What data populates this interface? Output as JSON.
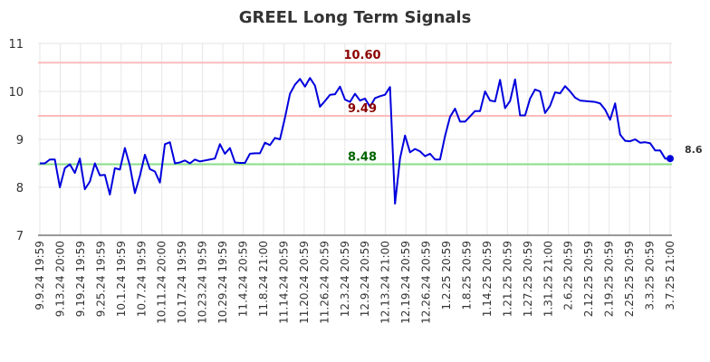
{
  "chart_data": {
    "type": "line",
    "title": "GREEL Long Term Signals",
    "xlabel": "",
    "ylabel": "",
    "ylim": [
      7,
      11
    ],
    "yticks": [
      "7",
      "8",
      "9",
      "10",
      "11"
    ],
    "x_tick_labels": [
      "9.9.24 19:59",
      "9.13.24 20:00",
      "9.19.24 19:59",
      "9.25.24 19:59",
      "10.1.24 19:59",
      "10.7.24 19:59",
      "10.11.24 20:00",
      "10.17.24 19:59",
      "10.23.24 19:59",
      "10.29.24 19:59",
      "11.4.24 20:59",
      "11.8.24 21:00",
      "11.14.24 20:59",
      "11.20.24 20:59",
      "11.26.24 20:59",
      "12.3.24 20:59",
      "12.9.24 20:59",
      "12.13.24 21:00",
      "12.19.24 20:59",
      "12.26.24 20:59",
      "1.2.25 20:59",
      "1.8.25 20:59",
      "1.14.25 20:59",
      "1.21.25 20:59",
      "1.27.25 20:59",
      "1.31.25 21:00",
      "2.6.25 20:59",
      "2.12.25 20:59",
      "2.19.25 20:59",
      "2.25.25 20:59",
      "3.3.25 20:59",
      "3.7.25 21:00"
    ],
    "grid": true,
    "series": [
      {
        "color": "#0000dd",
        "values": [
          8.5,
          8.5,
          8.58,
          8.58,
          8.0,
          8.4,
          8.48,
          8.3,
          8.6,
          7.96,
          8.12,
          8.5,
          8.25,
          8.26,
          7.85,
          8.4,
          8.37,
          8.82,
          8.45,
          7.88,
          8.24,
          8.68,
          8.38,
          8.33,
          8.1,
          8.9,
          8.94,
          8.5,
          8.52,
          8.56,
          8.5,
          8.58,
          8.54,
          8.56,
          8.58,
          8.6,
          8.9,
          8.7,
          8.82,
          8.52,
          8.51,
          8.51,
          8.7,
          8.71,
          8.71,
          8.93,
          8.88,
          9.03,
          9.0,
          9.45,
          9.95,
          10.14,
          10.26,
          10.1,
          10.28,
          10.12,
          9.68,
          9.8,
          9.93,
          9.94,
          10.1,
          9.83,
          9.78,
          9.95,
          9.81,
          9.85,
          9.68,
          9.86,
          9.9,
          9.93,
          10.09,
          7.66,
          8.6,
          9.08,
          8.73,
          8.8,
          8.75,
          8.65,
          8.7,
          8.58,
          8.58,
          9.07,
          9.47,
          9.64,
          9.37,
          9.37,
          9.48,
          9.59,
          9.59,
          10.0,
          9.81,
          9.79,
          10.24,
          9.65,
          9.8,
          10.25,
          9.5,
          9.5,
          9.85,
          10.04,
          10.0,
          9.55,
          9.7,
          9.98,
          9.96,
          10.11,
          10.0,
          9.87,
          9.81,
          9.8,
          9.79,
          9.78,
          9.75,
          9.62,
          9.41,
          9.75,
          9.1,
          8.97,
          8.96,
          9.0,
          8.93,
          8.94,
          8.92,
          8.77,
          8.77,
          8.6,
          8.6
        ]
      }
    ],
    "reference_lines": [
      {
        "label": "10.60",
        "value": 10.6,
        "color": "#ffbbbb",
        "label_color": "#8b0000"
      },
      {
        "label": "9.49",
        "value": 9.49,
        "color": "#ffbbbb",
        "label_color": "#8b0000"
      },
      {
        "label": "8.48",
        "value": 8.48,
        "color": "#88dd88",
        "label_color": "#006400"
      }
    ],
    "last_value_label": "8.6"
  }
}
